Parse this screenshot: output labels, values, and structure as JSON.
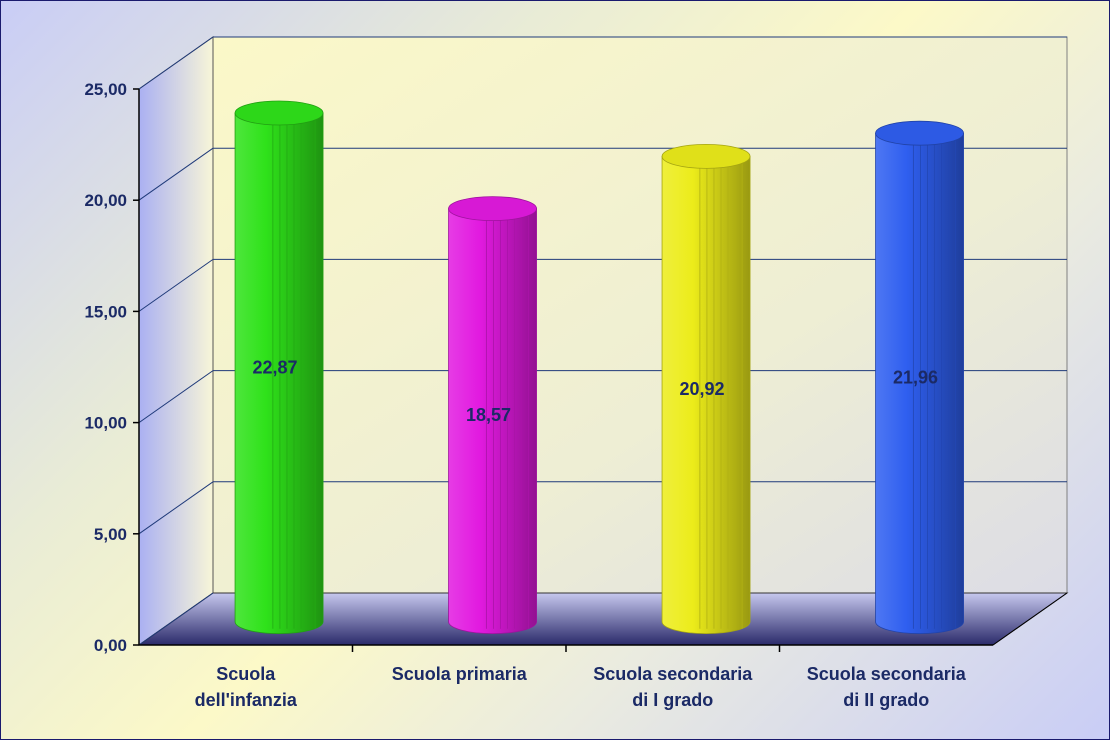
{
  "chart_data": {
    "type": "bar",
    "title": "",
    "xlabel": "",
    "ylabel": "",
    "categories": [
      [
        "Scuola",
        "dell'infanzia"
      ],
      [
        "Scuola primaria"
      ],
      [
        "Scuola secondaria",
        "di I grado"
      ],
      [
        "Scuola secondaria",
        "di II grado"
      ]
    ],
    "values": [
      22.87,
      18.57,
      20.92,
      21.96
    ],
    "value_labels": [
      "22,87",
      "18,57",
      "20,92",
      "21,96"
    ],
    "bar_colors": [
      "#2fe21a",
      "#e21ae0",
      "#ecec1a",
      "#2f5ff0"
    ],
    "ylim": [
      0,
      25
    ],
    "yticks": [
      0,
      5,
      10,
      15,
      20,
      25
    ],
    "ytick_labels": [
      "0,00",
      "5,00",
      "10,00",
      "15,00",
      "20,00",
      "25,00"
    ],
    "grid": true,
    "legend": "none",
    "style": "3d-cylinder"
  }
}
